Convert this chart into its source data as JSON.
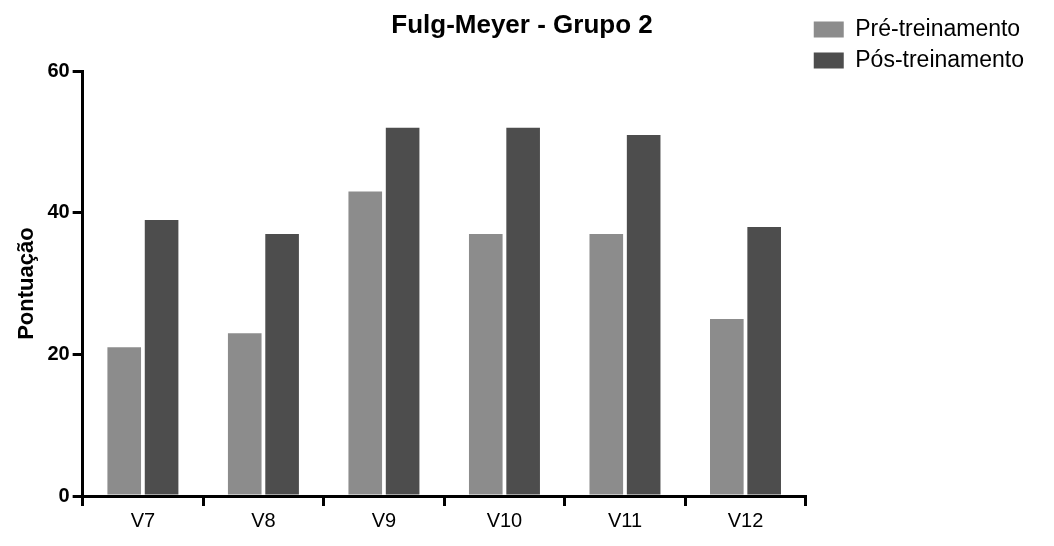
{
  "chart_data": {
    "type": "bar",
    "title": "Fulg-Meyer - Grupo 2",
    "ylabel": "Pontuação",
    "categories": [
      "V7",
      "V8",
      "V9",
      "V10",
      "V11",
      "V12"
    ],
    "series": [
      {
        "name": "Pré-treinamento",
        "color": "#8c8c8c",
        "values": [
          21,
          23,
          43,
          37,
          37,
          25
        ]
      },
      {
        "name": "Pós-treinamento",
        "color": "#4d4d4d",
        "values": [
          39,
          37,
          52,
          52,
          51,
          38
        ]
      }
    ],
    "ylim": [
      0,
      60
    ],
    "yticks": [
      0,
      20,
      40,
      60
    ],
    "grid": false,
    "legend": "top right"
  }
}
